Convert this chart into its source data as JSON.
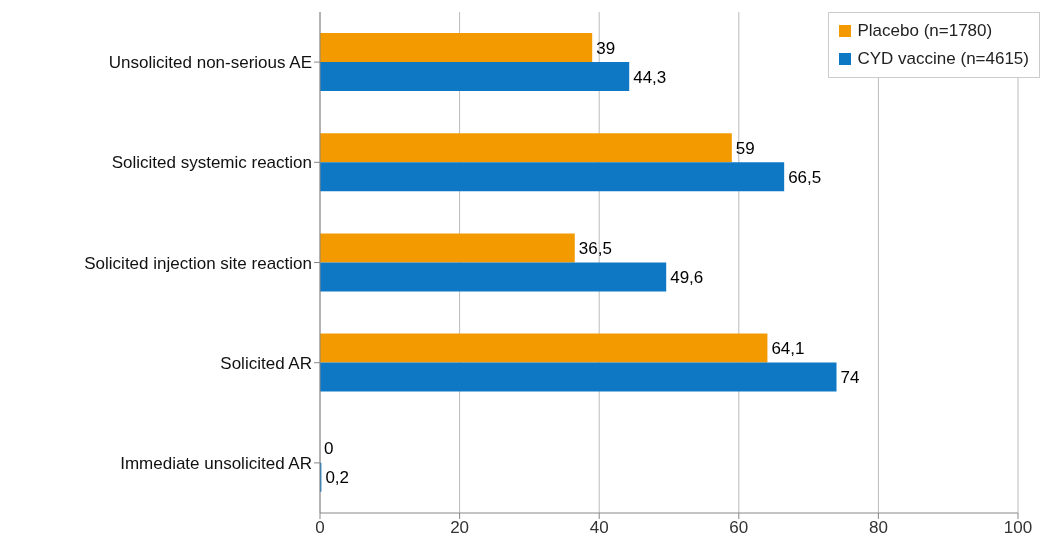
{
  "chart_data": {
    "type": "bar",
    "orientation": "horizontal",
    "categories": [
      "Unsolicited non-serious AE",
      "Solicited systemic reaction",
      "Solicited injection site reaction",
      "Solicited AR",
      "Immediate unsolicited AR"
    ],
    "series": [
      {
        "name": "Placebo (n=1780)",
        "color": "#f39a00",
        "values": [
          39,
          59,
          36.5,
          64.1,
          0
        ],
        "value_labels": [
          "39",
          "59",
          "36,5",
          "64,1",
          "0"
        ]
      },
      {
        "name": "CYD vaccine (n=4615)",
        "color": "#0e78c5",
        "values": [
          44.3,
          66.5,
          49.6,
          74,
          0.2
        ],
        "value_labels": [
          "44,3",
          "66,5",
          "49,6",
          "74",
          "0,2"
        ]
      }
    ],
    "xlim": [
      0,
      100
    ],
    "xticks": [
      0,
      20,
      40,
      60,
      80,
      100
    ],
    "grid": "x",
    "legend": "top right"
  }
}
